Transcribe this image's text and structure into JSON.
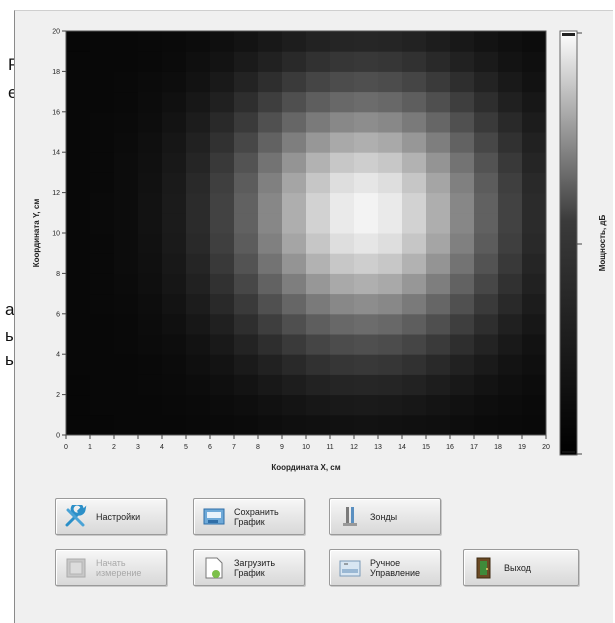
{
  "left_fragments": {
    "line1": "Р",
    "line2": "е",
    "line3": "аг",
    "line4": "ы",
    "line5": "ь"
  },
  "chart_data": {
    "type": "heatmap",
    "xlabel": "Координата X, см",
    "ylabel": "Координата Y, см",
    "colorbar_label": "Мощность, дБ",
    "x_ticks": [
      0,
      1,
      2,
      3,
      4,
      5,
      6,
      7,
      8,
      9,
      10,
      11,
      12,
      13,
      14,
      15,
      16,
      17,
      18,
      19,
      20
    ],
    "y_ticks": [
      0,
      2,
      4,
      6,
      8,
      10,
      12,
      14,
      16,
      18,
      20
    ],
    "xlim": [
      0,
      20
    ],
    "ylim": [
      0,
      20
    ],
    "grid_cells": 20,
    "colormap": "grayscale",
    "peak": {
      "x": 12.5,
      "y": 11,
      "sx": 3.6,
      "sy": 4.2,
      "base": 0.03
    }
  },
  "buttons": {
    "settings": "Настройки",
    "save_graph": "Сохранить\nГрафик",
    "probes": "Зонды",
    "start_measure": "Начать\nизмерение",
    "load_graph": "Загрузить\nГрафик",
    "manual_control": "Ручное\nУправление",
    "exit": "Выход"
  },
  "colors": {
    "panel_bg": "#f0f0f0",
    "button_face": "#e0e0e0"
  }
}
